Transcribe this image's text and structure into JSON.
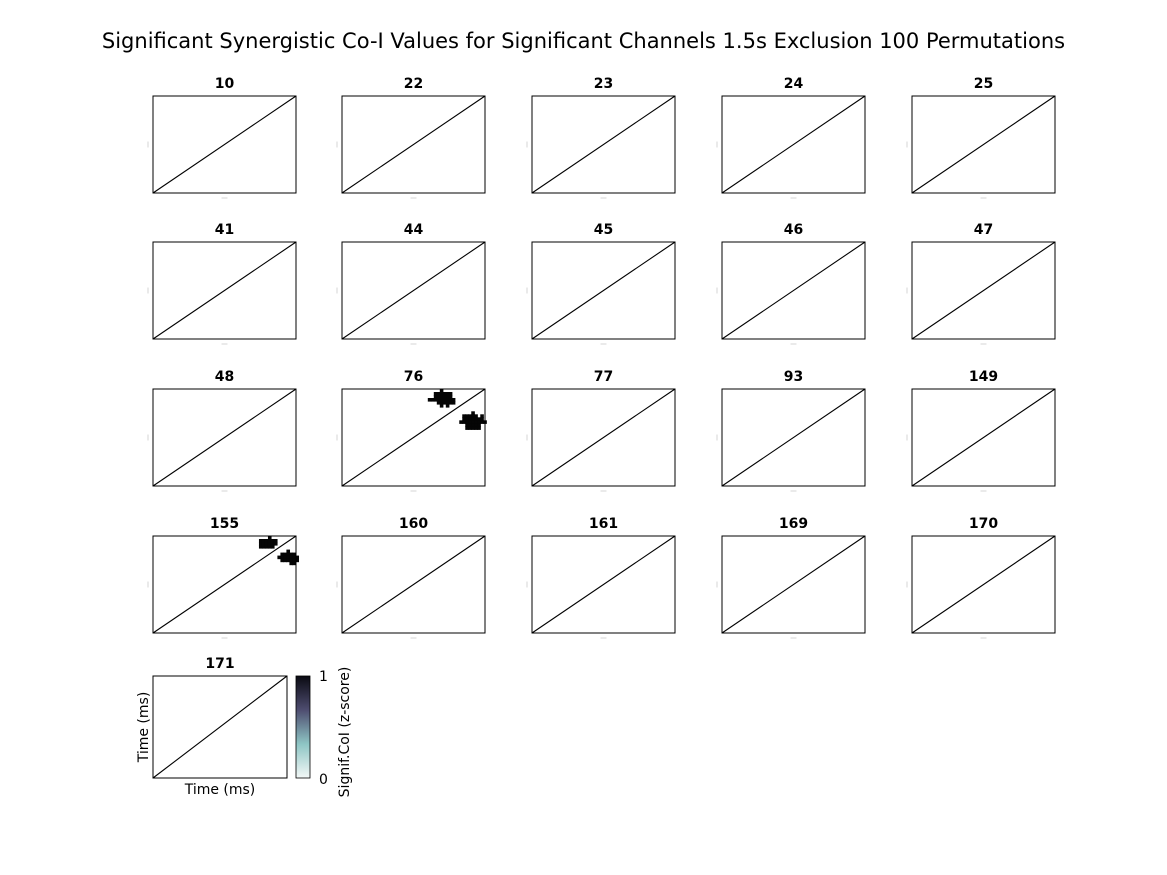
{
  "figure": {
    "title": "Significant Synergistic Co-I Values for Significant Channels 1.5s Exclusion 100 Permutations"
  },
  "chart_data": {
    "type": "heatmap",
    "title": "Significant Synergistic Co-I Values for Significant Channels 1.5s Exclusion 100 Permutations",
    "xlabel": "Time (ms)",
    "ylabel": "Time (ms)",
    "diagonal_line": true,
    "panels": [
      {
        "channel": "10",
        "significant_clusters": []
      },
      {
        "channel": "22",
        "significant_clusters": []
      },
      {
        "channel": "23",
        "significant_clusters": []
      },
      {
        "channel": "24",
        "significant_clusters": []
      },
      {
        "channel": "25",
        "significant_clusters": []
      },
      {
        "channel": "41",
        "significant_clusters": []
      },
      {
        "channel": "44",
        "significant_clusters": []
      },
      {
        "channel": "45",
        "significant_clusters": []
      },
      {
        "channel": "46",
        "significant_clusters": []
      },
      {
        "channel": "47",
        "significant_clusters": []
      },
      {
        "channel": "48",
        "significant_clusters": []
      },
      {
        "channel": "76",
        "significant_clusters": [
          {
            "x_range": [
              0.6,
              0.78
            ],
            "y_range": [
              0.84,
              1.0
            ],
            "value": 1
          },
          {
            "x_range": [
              0.82,
              1.0
            ],
            "y_range": [
              0.6,
              0.77
            ],
            "value": 1
          }
        ]
      },
      {
        "channel": "77",
        "significant_clusters": []
      },
      {
        "channel": "93",
        "significant_clusters": []
      },
      {
        "channel": "149",
        "significant_clusters": []
      },
      {
        "channel": "155",
        "significant_clusters": [
          {
            "x_range": [
              0.72,
              0.86
            ],
            "y_range": [
              0.88,
              1.0
            ],
            "value": 1
          },
          {
            "x_range": [
              0.87,
              1.0
            ],
            "y_range": [
              0.72,
              0.86
            ],
            "value": 1
          }
        ]
      },
      {
        "channel": "160",
        "significant_clusters": []
      },
      {
        "channel": "161",
        "significant_clusters": []
      },
      {
        "channel": "169",
        "significant_clusters": []
      },
      {
        "channel": "170",
        "significant_clusters": []
      },
      {
        "channel": "171",
        "significant_clusters": []
      }
    ],
    "colorbar": {
      "label": "Signif.CoI (z-score)",
      "min": 0,
      "max": 1,
      "tick_labels": [
        "0",
        "1"
      ],
      "colors": [
        "#f3f8f7",
        "#8ec5c4",
        "#4e4d70",
        "#0a0a12"
      ]
    }
  }
}
